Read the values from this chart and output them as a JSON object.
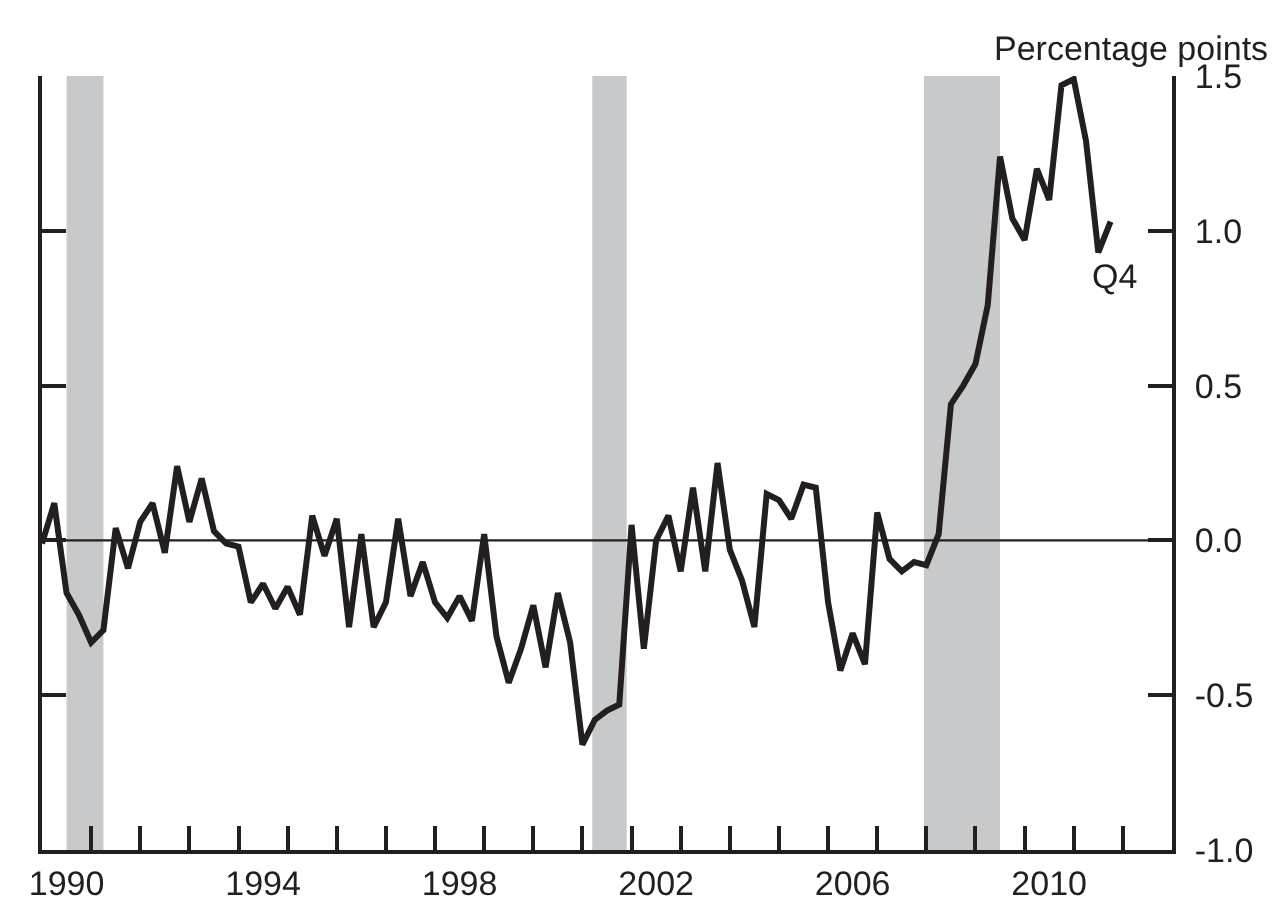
{
  "chart_data": {
    "type": "line",
    "ylabel": "Percentage points",
    "x": [
      1990,
      1990.25,
      1990.5,
      1990.75,
      1991,
      1991.25,
      1991.5,
      1991.75,
      1992,
      1992.25,
      1992.5,
      1992.75,
      1993,
      1993.25,
      1993.5,
      1993.75,
      1994,
      1994.25,
      1994.5,
      1994.75,
      1995,
      1995.25,
      1995.5,
      1995.75,
      1996,
      1996.25,
      1996.5,
      1996.75,
      1997,
      1997.25,
      1997.5,
      1997.75,
      1998,
      1998.25,
      1998.5,
      1998.75,
      1999,
      1999.25,
      1999.5,
      1999.75,
      2000,
      2000.25,
      2000.5,
      2000.75,
      2001,
      2001.25,
      2001.5,
      2001.75,
      2002,
      2002.25,
      2002.5,
      2002.75,
      2003,
      2003.25,
      2003.5,
      2003.75,
      2004,
      2004.25,
      2004.5,
      2004.75,
      2005,
      2005.25,
      2005.5,
      2005.75,
      2006,
      2006.25,
      2006.5,
      2006.75,
      2007,
      2007.25,
      2007.5,
      2007.75,
      2008,
      2008.25,
      2008.5,
      2008.75,
      2009,
      2009.25,
      2009.5,
      2009.75,
      2010,
      2010.25,
      2010.5,
      2010.75,
      2011,
      2011.25,
      2011.5,
      2011.75
    ],
    "series": [
      {
        "color": "#231f20",
        "values": [
          -0.01,
          0.12,
          -0.17,
          -0.24,
          -0.33,
          -0.29,
          0.04,
          -0.09,
          0.06,
          0.12,
          -0.04,
          0.24,
          0.06,
          0.2,
          0.03,
          -0.01,
          -0.02,
          -0.2,
          -0.14,
          -0.22,
          -0.15,
          -0.24,
          0.08,
          -0.05,
          0.07,
          -0.28,
          0.02,
          -0.28,
          -0.2,
          0.07,
          -0.18,
          -0.07,
          -0.2,
          -0.25,
          -0.18,
          -0.26,
          0.02,
          -0.31,
          -0.46,
          -0.35,
          -0.21,
          -0.41,
          -0.17,
          -0.33,
          -0.66,
          -0.58,
          -0.55,
          -0.53,
          0.05,
          -0.35,
          0.0,
          0.08,
          -0.1,
          0.17,
          -0.1,
          0.25,
          -0.03,
          -0.13,
          -0.28,
          0.15,
          0.13,
          0.07,
          0.18,
          0.17,
          -0.2,
          -0.42,
          -0.3,
          -0.4,
          0.09,
          -0.06,
          -0.1,
          -0.07,
          -0.08,
          0.02,
          0.44,
          0.5,
          0.57,
          0.76,
          1.24,
          1.04,
          0.97,
          1.2,
          1.1,
          1.47,
          1.49,
          1.29,
          0.93,
          1.03
        ]
      }
    ],
    "xlim": [
      1990,
      2013
    ],
    "xticks": [
      {
        "value": 1990.5,
        "label": "1990"
      },
      {
        "value": 1994.5,
        "label": "1994"
      },
      {
        "value": 1998.5,
        "label": "1998"
      },
      {
        "value": 2002.5,
        "label": "2002"
      },
      {
        "value": 2006.5,
        "label": "2006"
      },
      {
        "value": 2010.5,
        "label": "2010"
      },
      {
        "value": 1991,
        "label": null
      },
      {
        "value": 1992,
        "label": null
      },
      {
        "value": 1993,
        "label": null
      },
      {
        "value": 1994,
        "label": null
      },
      {
        "value": 1995,
        "label": null
      },
      {
        "value": 1996,
        "label": null
      },
      {
        "value": 1997,
        "label": null
      },
      {
        "value": 1998,
        "label": null
      },
      {
        "value": 1999,
        "label": null
      },
      {
        "value": 2000,
        "label": null
      },
      {
        "value": 2001,
        "label": null
      },
      {
        "value": 2002,
        "label": null
      },
      {
        "value": 2003,
        "label": null
      },
      {
        "value": 2004,
        "label": null
      },
      {
        "value": 2005,
        "label": null
      },
      {
        "value": 2006,
        "label": null
      },
      {
        "value": 2007,
        "label": null
      },
      {
        "value": 2008,
        "label": null
      },
      {
        "value": 2009,
        "label": null
      },
      {
        "value": 2010,
        "label": null
      },
      {
        "value": 2011,
        "label": null
      },
      {
        "value": 2012,
        "label": null
      }
    ],
    "ylim": [
      -1,
      1.5
    ],
    "yticks": [
      {
        "value": -1,
        "label": "-1.0"
      },
      {
        "value": -0.5,
        "label": "-0.5"
      },
      {
        "value": 0,
        "label": "0.0"
      },
      {
        "value": 0.5,
        "label": "0.5"
      },
      {
        "value": 1,
        "label": "1.0"
      },
      {
        "value": 1.5,
        "label": "1.5"
      }
    ],
    "ref_lines": [
      {
        "axis": "y",
        "value": 0,
        "color": "#231f20"
      }
    ],
    "bands": [
      {
        "axis": "x",
        "from": 1990.5,
        "to": 1991.25,
        "color": "#c8c9cb"
      },
      {
        "axis": "x",
        "from": 2001.2,
        "to": 2001.9,
        "color": "#c8c9cb"
      },
      {
        "axis": "x",
        "from": 2007.95,
        "to": 2009.5,
        "color": "#c8c9cb"
      }
    ],
    "annotations": [
      {
        "text": "Q4",
        "x": 2011.75,
        "y": 1.03
      }
    ],
    "marker": "none",
    "line_style": "solid"
  }
}
